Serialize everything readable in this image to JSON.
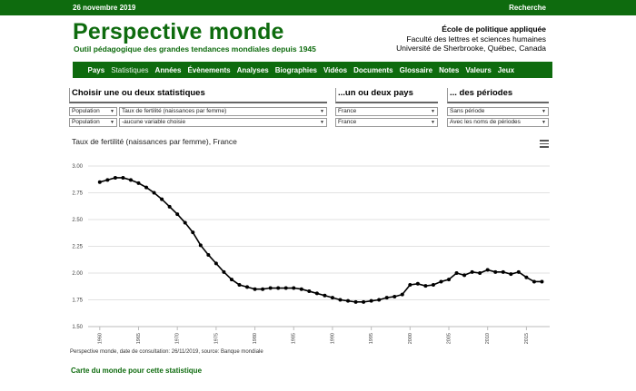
{
  "topbar": {
    "date": "26 novembre 2019",
    "search": "Recherche"
  },
  "brand": {
    "title": "Perspective monde",
    "tagline": "Outil pédagogique des grandes tendances mondiales depuis 1945"
  },
  "institution": {
    "name": "École de politique appliquée",
    "line2": "Faculté des lettres et sciences humaines",
    "line3": "Université de Sherbrooke, Québec, Canada"
  },
  "nav": {
    "items": [
      "Pays",
      "Statistiques",
      "Années",
      "Évènements",
      "Analyses",
      "Biographies",
      "Vidéos",
      "Documents",
      "Glossaire",
      "Notes",
      "Valeurs",
      "Jeux"
    ],
    "active": "Statistiques"
  },
  "selectors": {
    "stat_heading": "Choisir une ou deux statistiques",
    "country_heading": "...un ou deux pays",
    "period_heading": "... des périodes",
    "cat1": "Population",
    "var1": "Taux de fertilité (naissances par femme)",
    "cat2": "Population",
    "var2": "-aucune variable choisie",
    "country1": "France",
    "country2": "France",
    "period1": "Sans période",
    "period2": "Avec les noms de périodes"
  },
  "chart_title": "Taux de fertilité (naissances par femme), France",
  "credits": "Perspective monde, date de consultation: 26/11/2019, source: Banque mondiale",
  "map_link": "Carte du monde pour cette statistique",
  "colors": {
    "brand_green": "#0e6b0e",
    "series": "#000000"
  },
  "chart_data": {
    "type": "line",
    "title": "Taux de fertilité (naissances par femme), France",
    "x": [
      1960,
      1961,
      1962,
      1963,
      1964,
      1965,
      1966,
      1967,
      1968,
      1969,
      1970,
      1971,
      1972,
      1973,
      1974,
      1975,
      1976,
      1977,
      1978,
      1979,
      1980,
      1981,
      1982,
      1983,
      1984,
      1985,
      1986,
      1987,
      1988,
      1989,
      1990,
      1991,
      1992,
      1993,
      1994,
      1995,
      1996,
      1997,
      1998,
      1999,
      2000,
      2001,
      2002,
      2003,
      2004,
      2005,
      2006,
      2007,
      2008,
      2009,
      2010,
      2011,
      2012,
      2013,
      2014,
      2015,
      2016,
      2017
    ],
    "y": [
      2.85,
      2.87,
      2.89,
      2.89,
      2.87,
      2.84,
      2.8,
      2.75,
      2.69,
      2.62,
      2.55,
      2.47,
      2.38,
      2.26,
      2.17,
      2.09,
      2.01,
      1.94,
      1.89,
      1.87,
      1.85,
      1.85,
      1.86,
      1.86,
      1.86,
      1.86,
      1.85,
      1.83,
      1.81,
      1.79,
      1.77,
      1.75,
      1.74,
      1.73,
      1.73,
      1.74,
      1.75,
      1.77,
      1.78,
      1.8,
      1.89,
      1.9,
      1.88,
      1.89,
      1.92,
      1.94,
      2.0,
      1.98,
      2.01,
      2.0,
      2.03,
      2.01,
      2.01,
      1.99,
      2.01,
      1.96,
      1.92,
      1.92
    ],
    "xticks": [
      1960,
      1965,
      1970,
      1975,
      1980,
      1985,
      1990,
      1995,
      2000,
      2005,
      2010,
      2015
    ],
    "yticks": [
      "3.00",
      "2.75",
      "2.50",
      "2.25",
      "2.00",
      "1.75",
      "1.50"
    ],
    "xlim": [
      1958.5,
      2018
    ],
    "ylim": [
      1.5,
      3.0
    ],
    "grid": true
  }
}
